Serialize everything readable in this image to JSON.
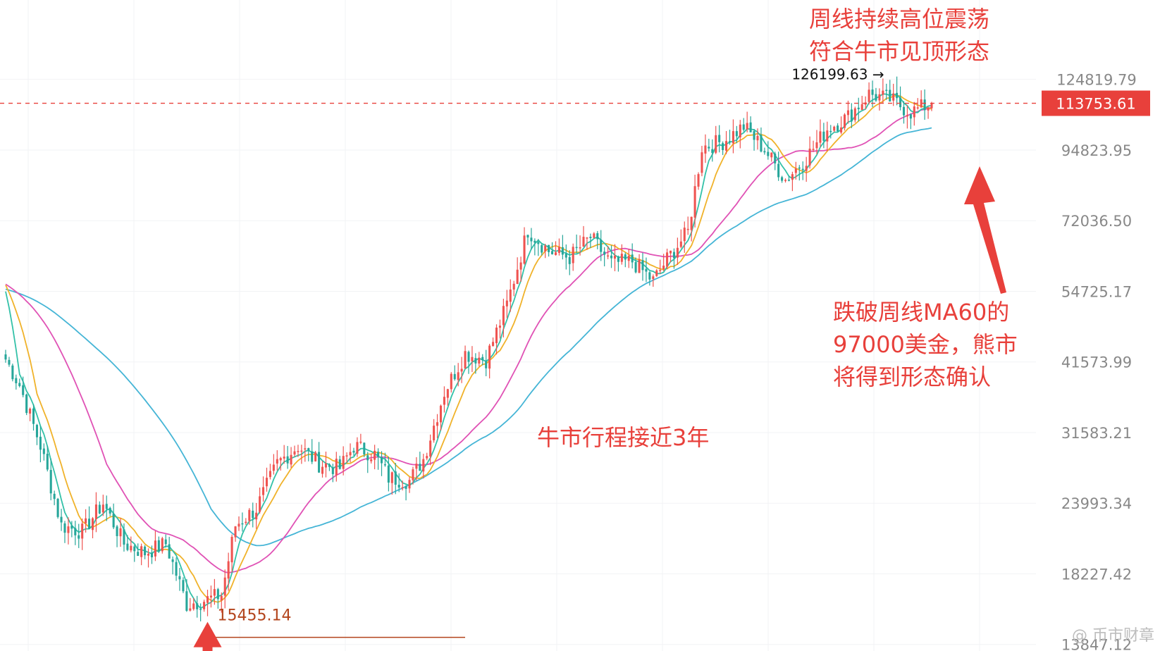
{
  "chart_data": {
    "type": "candlestick",
    "y_scale": "log",
    "ylim": [
      13500,
      170000
    ],
    "y_ticks": [
      "124819.79",
      "94823.95",
      "72036.50",
      "54725.17",
      "41573.99",
      "31583.21",
      "23993.34",
      "18227.42",
      "13847.12"
    ],
    "y_tick_values": [
      124819.79,
      94823.95,
      72036.5,
      54725.17,
      41573.99,
      31583.21,
      23993.34,
      18227.42,
      13847.12
    ],
    "current_price": {
      "label": "113753.61",
      "value": 113753.61
    },
    "high_marker": {
      "label": "126199.63",
      "value": 126199.63
    },
    "low_marker": {
      "label": "15455.14",
      "value": 15455.14
    },
    "grid": true,
    "colors": {
      "up": "#ef5350",
      "down": "#26a69a",
      "ma_fast": "#33c1a8",
      "ma_mid": "#f0b22a",
      "ma_slow": "#e052b5",
      "ma60": "#45b5d6",
      "price_line": "#e8403b",
      "low_line": "#b3441c",
      "annotation": "#e8403b"
    },
    "ma_series_names": [],
    "annotations": [
      {
        "key": "top",
        "text": "周线持续高位震荡\n符合牛市见顶形态"
      },
      {
        "key": "mid",
        "text": "牛市行程接近3年"
      },
      {
        "key": "right",
        "text": "跌破周线MA60的\n97000美金，熊市\n将得到形态确认"
      }
    ],
    "close_anchors": [
      [
        0,
        42000
      ],
      [
        4,
        38000
      ],
      [
        10,
        30000
      ],
      [
        16,
        22000
      ],
      [
        22,
        21500
      ],
      [
        28,
        24000
      ],
      [
        34,
        20500
      ],
      [
        40,
        19800
      ],
      [
        46,
        20500
      ],
      [
        52,
        16200
      ],
      [
        58,
        16500
      ],
      [
        62,
        16800
      ],
      [
        66,
        22000
      ],
      [
        72,
        23500
      ],
      [
        78,
        28000
      ],
      [
        84,
        30000
      ],
      [
        90,
        28000
      ],
      [
        96,
        27500
      ],
      [
        100,
        30000
      ],
      [
        106,
        29000
      ],
      [
        110,
        26500
      ],
      [
        116,
        26200
      ],
      [
        120,
        28500
      ],
      [
        126,
        37000
      ],
      [
        132,
        43000
      ],
      [
        138,
        42000
      ],
      [
        144,
        52000
      ],
      [
        150,
        69500
      ],
      [
        156,
        64000
      ],
      [
        162,
        62500
      ],
      [
        168,
        67500
      ],
      [
        174,
        61000
      ],
      [
        180,
        61500
      ],
      [
        186,
        57000
      ],
      [
        190,
        62000
      ],
      [
        196,
        69000
      ],
      [
        200,
        96000
      ],
      [
        206,
        98000
      ],
      [
        212,
        104000
      ],
      [
        218,
        95000
      ],
      [
        224,
        84500
      ],
      [
        230,
        92000
      ],
      [
        236,
        103000
      ],
      [
        242,
        108000
      ],
      [
        248,
        118000
      ],
      [
        254,
        115500
      ],
      [
        260,
        110000
      ],
      [
        266,
        113753
      ]
    ]
  },
  "watermark": "@ 币市财章"
}
